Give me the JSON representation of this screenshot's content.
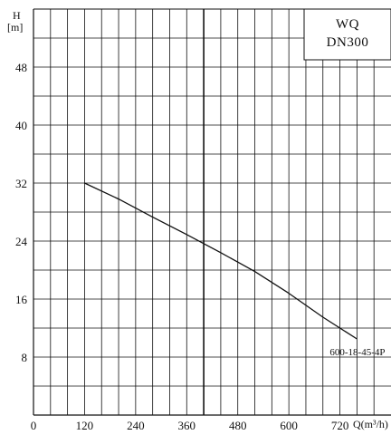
{
  "chart_data": {
    "type": "line",
    "title": "",
    "legend_box": {
      "line1": "WQ",
      "line2": "DN300"
    },
    "ylabel_top": "H",
    "ylabel_unit": "[m]",
    "xlabel": "Q(m³/h)",
    "xlim": [
      0,
      840
    ],
    "ylim": [
      0,
      56
    ],
    "x_grid_step": 40,
    "y_grid_step": 4,
    "x_ticks": [
      0,
      120,
      240,
      360,
      480,
      600,
      720
    ],
    "x_tick_labels": [
      "0",
      "120",
      "240",
      "360",
      "480",
      "600",
      "720"
    ],
    "y_ticks": [
      8,
      16,
      24,
      32,
      40,
      48
    ],
    "y_tick_labels": [
      "8",
      "16",
      "24",
      "32",
      "40",
      "48"
    ],
    "grid": true,
    "series": [
      {
        "name": "600-18-45-4P",
        "x": [
          120,
          200,
          280,
          360,
          440,
          520,
          600,
          680,
          760
        ],
        "y": [
          32,
          29.8,
          27.3,
          24.9,
          22.4,
          19.8,
          16.8,
          13.5,
          10.5
        ]
      }
    ]
  }
}
